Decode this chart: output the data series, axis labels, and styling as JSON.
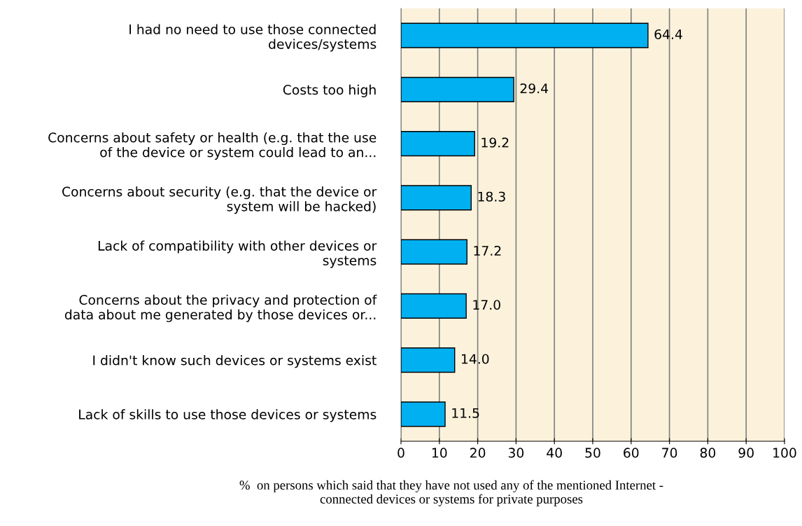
{
  "chart_data": {
    "type": "bar",
    "orientation": "horizontal",
    "categories": [
      "I had no need to use those connected\ndevices/systems",
      "Costs too high",
      "Concerns about safety or health (e.g. that the use\nof the device or system could lead to an...",
      "Concerns about security (e.g. that the device or\nsystem will be hacked)",
      "Lack of compatibility with other devices or\nsystems",
      "Concerns about the privacy and protection of\ndata about me generated by those devices or...",
      "I didn't know such devices or systems exist",
      "Lack of skills to use those devices or systems"
    ],
    "values": [
      64.4,
      29.4,
      19.2,
      18.3,
      17.2,
      17.0,
      14.0,
      11.5
    ],
    "value_labels": [
      "64.4",
      "29.4",
      "19.2",
      "18.3",
      "17.2",
      "17.0",
      "14.0",
      "11.5"
    ],
    "color": "#00b0f0",
    "xlim": [
      0,
      100
    ],
    "xticks": [
      0,
      10,
      20,
      30,
      40,
      50,
      60,
      70,
      80,
      90,
      100
    ],
    "xlabel": "%  on persons which said that they have not used any of the mentioned Internet -\nconnected devices or systems for private purposes",
    "grid": "x"
  }
}
